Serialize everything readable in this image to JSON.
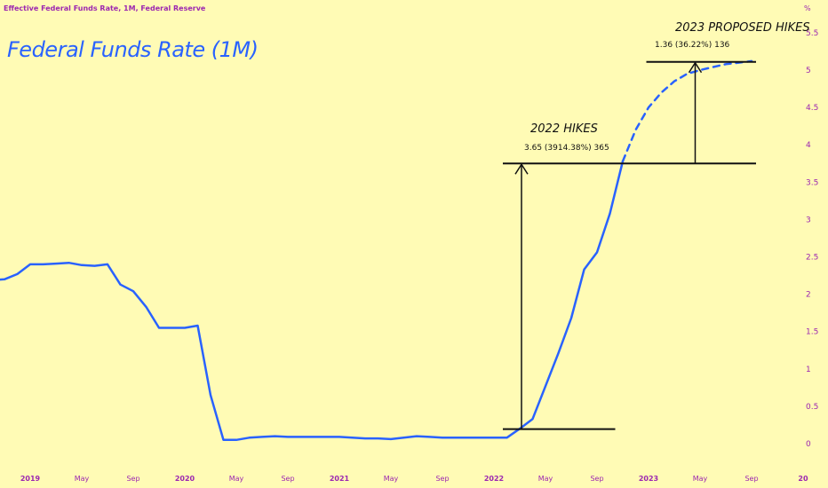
{
  "chart_data": {
    "type": "line",
    "source": "Effective Federal Funds Rate, 1M, Federal Reserve",
    "unit": "%",
    "title": "Federal Funds Rate (1M)",
    "ylim": [
      0,
      5.5
    ],
    "yticks": [
      "0",
      "0.5",
      "1",
      "1.5",
      "2",
      "2.5",
      "3",
      "3.5",
      "4",
      "4.5",
      "5",
      "5.5"
    ],
    "xticks": [
      {
        "label": "2019",
        "date": "2019-01",
        "year": true
      },
      {
        "label": "May",
        "date": "2019-05",
        "year": false
      },
      {
        "label": "Sep",
        "date": "2019-09",
        "year": false
      },
      {
        "label": "2020",
        "date": "2020-01",
        "year": true
      },
      {
        "label": "May",
        "date": "2020-05",
        "year": false
      },
      {
        "label": "Sep",
        "date": "2020-09",
        "year": false
      },
      {
        "label": "2021",
        "date": "2021-01",
        "year": true
      },
      {
        "label": "May",
        "date": "2021-05",
        "year": false
      },
      {
        "label": "Sep",
        "date": "2021-09",
        "year": false
      },
      {
        "label": "2022",
        "date": "2022-01",
        "year": true
      },
      {
        "label": "May",
        "date": "2022-05",
        "year": false
      },
      {
        "label": "Sep",
        "date": "2022-09",
        "year": false
      },
      {
        "label": "2023",
        "date": "2023-01",
        "year": true
      },
      {
        "label": "May",
        "date": "2023-05",
        "year": false
      },
      {
        "label": "Sep",
        "date": "2023-09",
        "year": false
      },
      {
        "label": "20",
        "date": "2024-01",
        "year": true
      }
    ],
    "series": [
      {
        "style": "solid",
        "color": "#2962ff",
        "x": [
          "2018-09",
          "2018-10",
          "2018-11",
          "2018-12",
          "2019-01",
          "2019-02",
          "2019-03",
          "2019-04",
          "2019-05",
          "2019-06",
          "2019-07",
          "2019-08",
          "2019-09",
          "2019-10",
          "2019-11",
          "2019-12",
          "2020-01",
          "2020-02",
          "2020-03",
          "2020-04",
          "2020-05",
          "2020-06",
          "2020-07",
          "2020-08",
          "2020-09",
          "2020-10",
          "2020-11",
          "2020-12",
          "2021-01",
          "2021-02",
          "2021-03",
          "2021-04",
          "2021-05",
          "2021-06",
          "2021-07",
          "2021-08",
          "2021-09",
          "2021-10",
          "2021-11",
          "2021-12",
          "2022-01",
          "2022-02",
          "2022-03",
          "2022-04",
          "2022-05",
          "2022-06",
          "2022-07",
          "2022-08",
          "2022-09",
          "2022-10",
          "2022-11"
        ],
        "y": [
          2.18,
          2.19,
          2.2,
          2.27,
          2.4,
          2.4,
          2.41,
          2.42,
          2.39,
          2.38,
          2.4,
          2.13,
          2.04,
          1.83,
          1.55,
          1.55,
          1.55,
          1.58,
          0.65,
          0.05,
          0.05,
          0.08,
          0.09,
          0.1,
          0.09,
          0.09,
          0.09,
          0.09,
          0.09,
          0.08,
          0.07,
          0.07,
          0.06,
          0.08,
          0.1,
          0.09,
          0.08,
          0.08,
          0.08,
          0.08,
          0.08,
          0.08,
          0.2,
          0.33,
          0.77,
          1.21,
          1.68,
          2.33,
          2.56,
          3.08,
          3.78
        ]
      },
      {
        "style": "dashed",
        "color": "#2962ff",
        "x": [
          "2022-11",
          "2022-12",
          "2023-01",
          "2023-02",
          "2023-03",
          "2023-04",
          "2023-05",
          "2023-06",
          "2023-07",
          "2023-08",
          "2023-09"
        ],
        "y": [
          3.78,
          4.2,
          4.5,
          4.7,
          4.85,
          4.95,
          5.0,
          5.04,
          5.08,
          5.1,
          5.12
        ]
      }
    ],
    "annotations": [
      {
        "title": "2022 HIKES",
        "subtitle": "3.65 (3914.38%) 365",
        "from_date": "2022-03",
        "from_value": 0.1,
        "to_value": 3.75,
        "base_line": [
          "2022-01",
          "2022-10"
        ],
        "top_line": [
          "2022-01",
          "2023-09"
        ]
      },
      {
        "title": "2023 PROPOSED HIKES",
        "subtitle": "1.36 (36.22%) 136",
        "from_date": "2023-04",
        "from_value": 3.75,
        "to_value": 5.11,
        "top_line": [
          "2022-12",
          "2023-09"
        ]
      }
    ]
  }
}
